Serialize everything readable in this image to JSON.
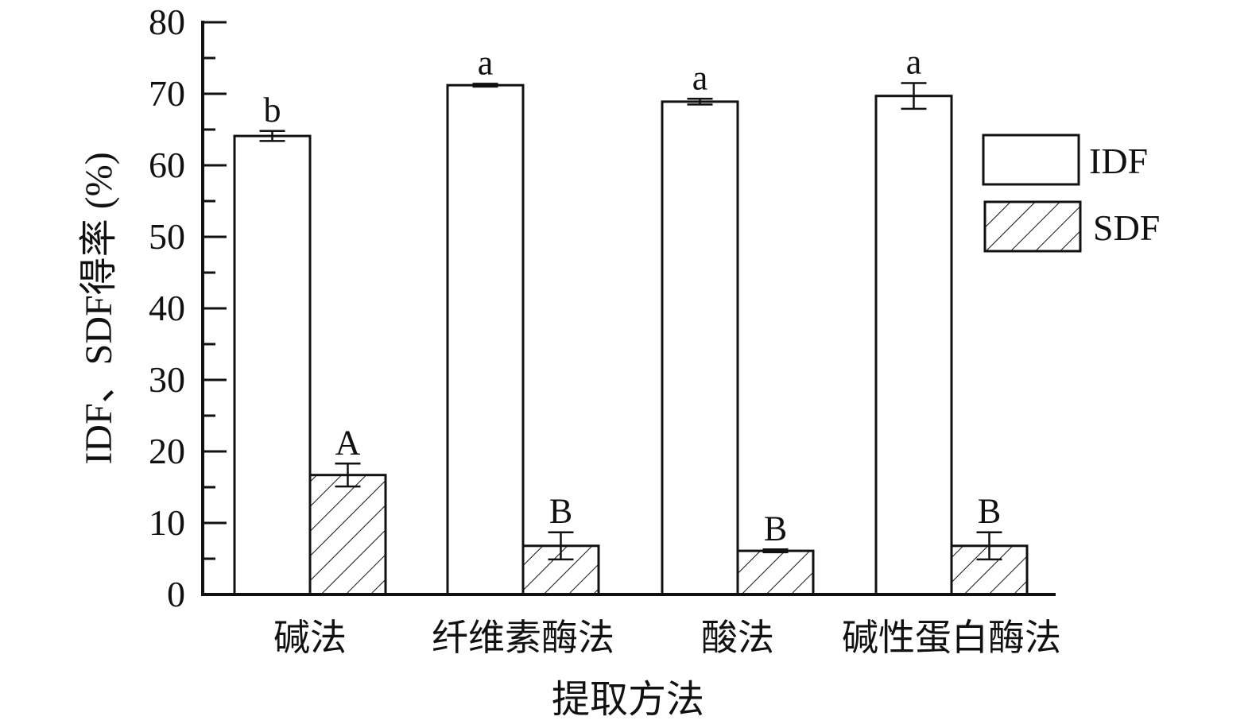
{
  "chart_data": {
    "type": "bar",
    "xlabel": "提取方法",
    "ylabel": "IDF、SDF得率 (%)",
    "ylim": [
      0,
      80
    ],
    "yticks": [
      0,
      10,
      20,
      30,
      40,
      50,
      60,
      70,
      80
    ],
    "categories": [
      "碱法",
      "纤维素酶法",
      "酸法",
      "碱性蛋白酶法"
    ],
    "series": [
      {
        "name": "IDF",
        "pattern": "none",
        "values": [
          64.1,
          71.2,
          68.9,
          69.7
        ],
        "errors": [
          0.7,
          0.2,
          0.4,
          1.8
        ],
        "labels": [
          "b",
          "a",
          "a",
          "a"
        ]
      },
      {
        "name": "SDF",
        "pattern": "hatch",
        "values": [
          16.7,
          6.8,
          6.1,
          6.8
        ],
        "errors": [
          1.6,
          1.9,
          0.2,
          1.9
        ],
        "labels": [
          "A",
          "B",
          "B",
          "B"
        ]
      }
    ],
    "legend": "top-right",
    "grid": false,
    "colors": {
      "bar_fill": "#ffffff",
      "stroke": "#111111",
      "hatch": "#111111"
    }
  }
}
